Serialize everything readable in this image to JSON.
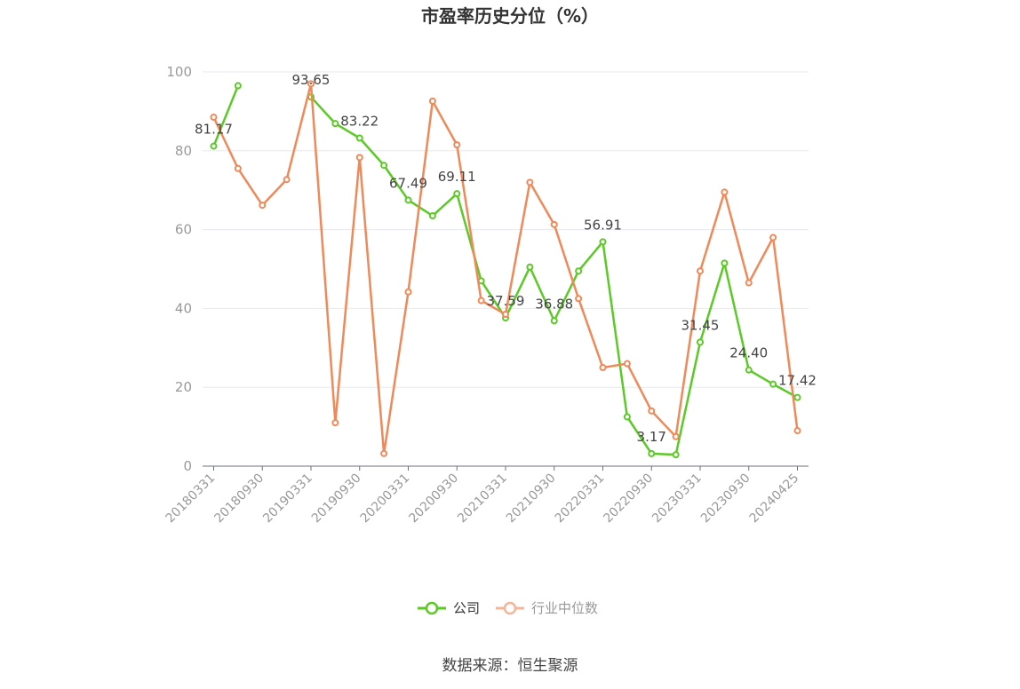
{
  "chart_data": {
    "type": "line",
    "title": "市盈率历史分位（%）",
    "ylim": [
      0,
      100
    ],
    "yticks": [
      0,
      20,
      40,
      60,
      80,
      100
    ],
    "grid": true,
    "legend_position": "bottom",
    "x": [
      "20180331",
      "20180630",
      "20180930",
      "20181231",
      "20190331",
      "20190630",
      "20190930",
      "20191231",
      "20200331",
      "20200630",
      "20200930",
      "20201231",
      "20210331",
      "20210630",
      "20210930",
      "20211231",
      "20220331",
      "20220630",
      "20220930",
      "20221231",
      "20230331",
      "20230630",
      "20230930",
      "20231231",
      "20240425"
    ],
    "x_tick_labels": [
      "20180331",
      "20180930",
      "20190331",
      "20190930",
      "20200331",
      "20200930",
      "20210331",
      "20210930",
      "20220331",
      "20220930",
      "20230331",
      "20230930",
      "20240425"
    ],
    "series": [
      {
        "name": "公司",
        "color": "#5bc926",
        "values": [
          81.17,
          96.5,
          null,
          null,
          93.65,
          86.9,
          83.22,
          76.3,
          67.49,
          63.5,
          69.11,
          47.0,
          37.59,
          50.5,
          36.88,
          49.5,
          56.91,
          12.5,
          3.17,
          2.9,
          31.45,
          51.5,
          24.4,
          20.8,
          17.42
        ]
      },
      {
        "name": "行业中位数",
        "color": "#f0895a",
        "values": [
          88.5,
          75.5,
          66.2,
          72.7,
          97.0,
          11.0,
          78.3,
          3.2,
          44.2,
          92.6,
          81.5,
          42.0,
          38.5,
          72.0,
          61.3,
          42.5,
          25.0,
          26.0,
          14.0,
          7.5,
          49.5,
          69.5,
          46.5,
          58.0,
          9.0
        ]
      }
    ],
    "data_labels": [
      {
        "index": 0,
        "text": "81.17"
      },
      {
        "index": 4,
        "text": "93.65"
      },
      {
        "index": 6,
        "text": "83.22"
      },
      {
        "index": 8,
        "text": "67.49"
      },
      {
        "index": 10,
        "text": "69.11"
      },
      {
        "index": 12,
        "text": "37.59"
      },
      {
        "index": 14,
        "text": "36.88"
      },
      {
        "index": 16,
        "text": "56.91"
      },
      {
        "index": 18,
        "text": "3.17"
      },
      {
        "index": 20,
        "text": "31.45"
      },
      {
        "index": 22,
        "text": "24.40"
      },
      {
        "index": 24,
        "text": "17.42"
      }
    ],
    "source": "数据来源：恒生聚源"
  }
}
